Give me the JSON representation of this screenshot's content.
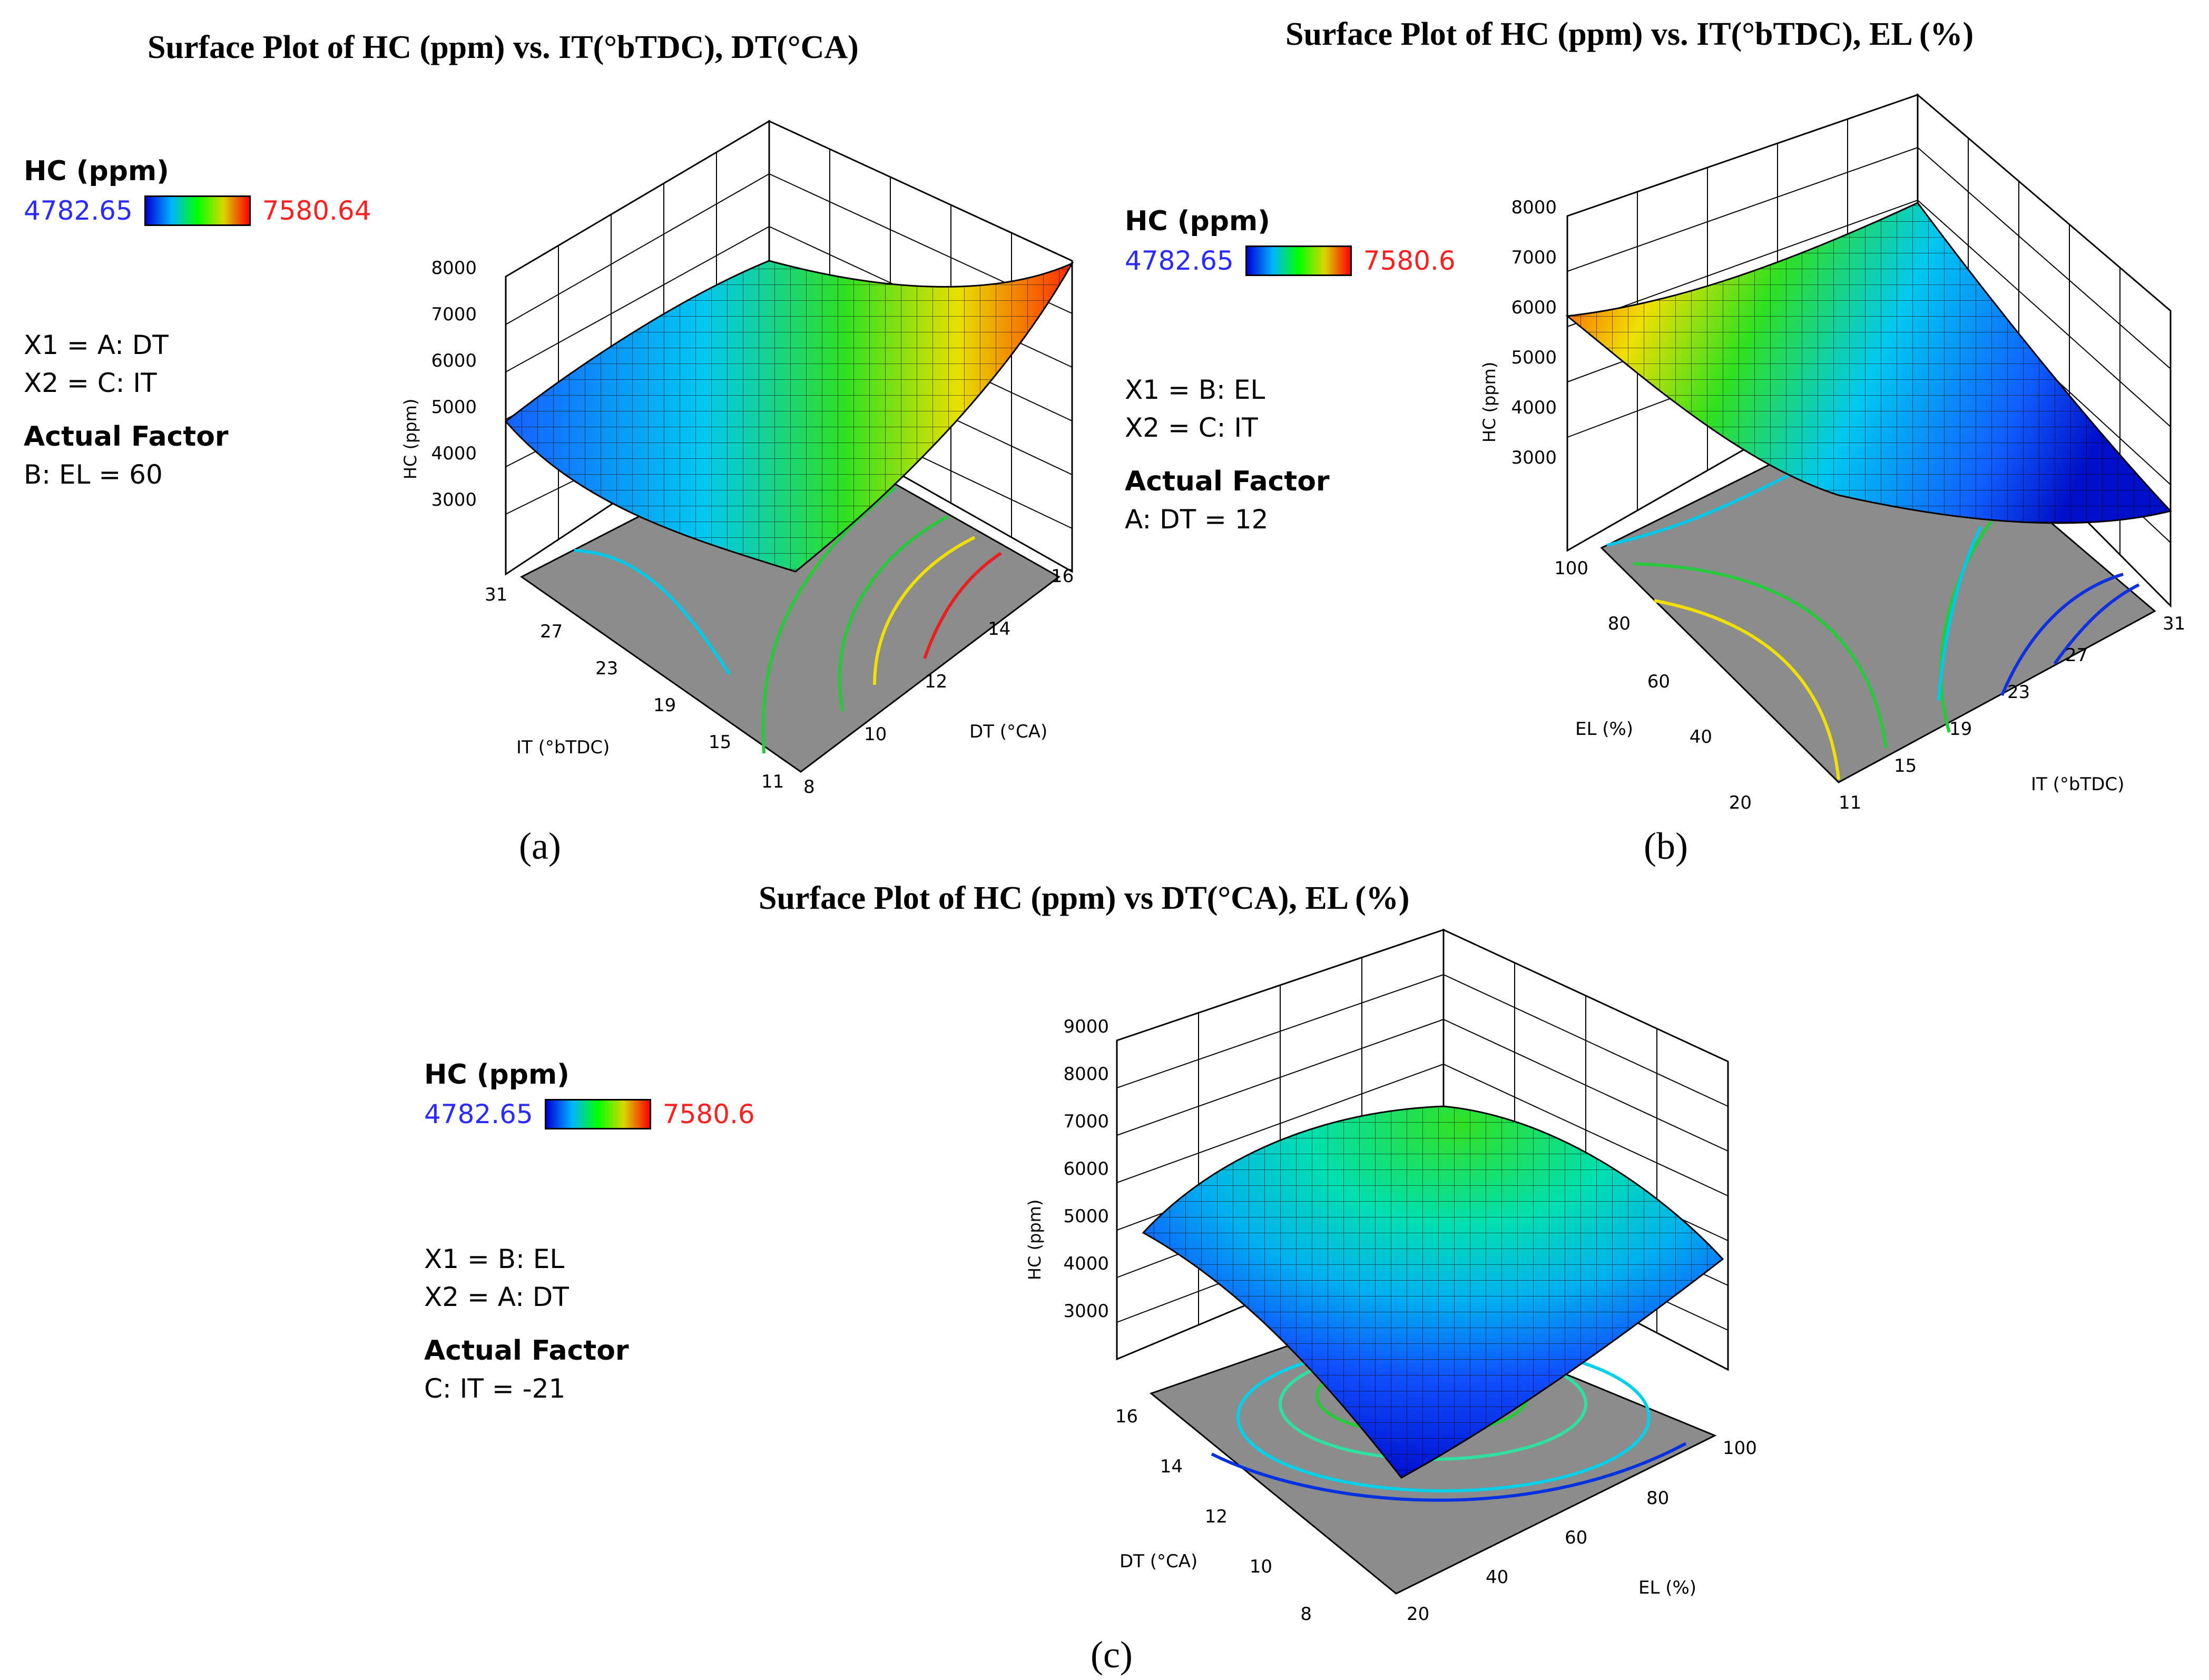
{
  "chart_data": [
    {
      "type": "surface",
      "panel": "(a)",
      "title": "Surface Plot of HC (ppm) vs. IT(°bTDC), DT(°CA)",
      "zlabel": "HC (ppm)",
      "zticks": [
        "8000",
        "7000",
        "6000",
        "5000",
        "4000",
        "3000"
      ],
      "xlabel": "DT (°CA)",
      "xticks": [
        "8",
        "10",
        "12",
        "14",
        "16"
      ],
      "ylabel": "IT (°bTDC)",
      "yticks": [
        "31",
        "27",
        "23",
        "19",
        "15",
        "11"
      ],
      "legend": {
        "title": "HC (ppm)",
        "min": "4782.65",
        "max": "7580.64"
      },
      "factors": [
        "X1 = A: DT",
        "X2 = C: IT"
      ],
      "actual_factor_title": "Actual Factor",
      "actual_factor": "B: EL = 60"
    },
    {
      "type": "surface",
      "panel": "(b)",
      "title": "Surface Plot of HC (ppm) vs. IT(°bTDC), EL (%)",
      "zlabel": "HC (ppm)",
      "zticks": [
        "8000",
        "7000",
        "6000",
        "5000",
        "4000",
        "3000"
      ],
      "xlabel": "EL (%)",
      "xticks": [
        "100",
        "80",
        "60",
        "40",
        "20"
      ],
      "ylabel": "IT (°bTDC)",
      "yticks": [
        "11",
        "15",
        "19",
        "23",
        "27",
        "31"
      ],
      "legend": {
        "title": "HC (ppm)",
        "min": "4782.65",
        "max": "7580.6"
      },
      "factors": [
        "X1 = B: EL",
        "X2 = C: IT"
      ],
      "actual_factor_title": "Actual Factor",
      "actual_factor": "A: DT = 12"
    },
    {
      "type": "surface",
      "panel": "(c)",
      "title": "Surface Plot of HC (ppm) vs DT(°CA), EL (%)",
      "zlabel": "HC (ppm)",
      "zticks": [
        "9000",
        "8000",
        "7000",
        "6000",
        "5000",
        "4000",
        "3000"
      ],
      "xlabel": "DT (°CA)",
      "xticks": [
        "16",
        "14",
        "12",
        "10",
        "8"
      ],
      "ylabel": "EL (%)",
      "yticks": [
        "20",
        "40",
        "60",
        "80",
        "100"
      ],
      "legend": {
        "title": "HC (ppm)",
        "min": "4782.65",
        "max": "7580.6"
      },
      "factors": [
        "X1 = B: EL",
        "X2 = A: DT"
      ],
      "actual_factor_title": "Actual Factor",
      "actual_factor": "C: IT = -21"
    }
  ],
  "colors": {
    "low": "#0000d8",
    "mid": "#00ff00",
    "high": "#ff0000",
    "floor": "#8c8c8c"
  }
}
